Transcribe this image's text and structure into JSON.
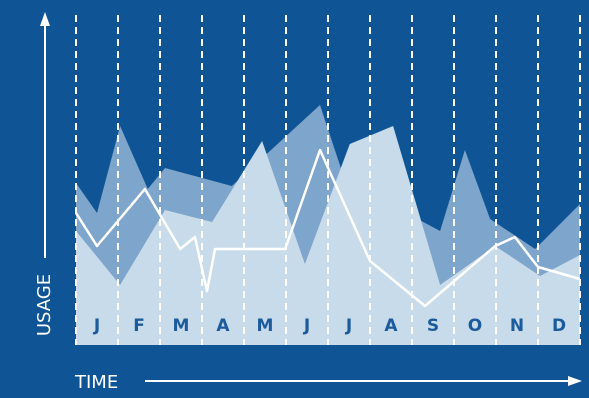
{
  "chart_data": {
    "type": "area",
    "x_label": "TIME",
    "y_label": "USAGE",
    "categories": [
      "J",
      "F",
      "M",
      "A",
      "M",
      "J",
      "J",
      "A",
      "S",
      "O",
      "N",
      "D"
    ],
    "xlim": [
      0,
      12
    ],
    "ylim": [
      0,
      100
    ],
    "xticks": [
      0,
      1,
      2,
      3,
      4,
      5,
      6,
      7,
      8,
      9,
      10,
      11,
      12
    ],
    "grid": true,
    "background": "#0f5596",
    "label_color": "#1c5b9b",
    "grid_color": "#ffffff",
    "series": [
      {
        "type": "area",
        "color": "#7ea5cb",
        "x": [
          0,
          0.5,
          1.05,
          1.71,
          2.12,
          3.71,
          5.81,
          6.4,
          8.67,
          9.26,
          9.86,
          10.93,
          12
        ],
        "values": [
          54,
          44,
          73,
          52,
          59,
          53,
          80,
          55,
          38,
          65,
          42,
          32,
          47
        ]
      },
      {
        "type": "area",
        "color": "#c8dbea",
        "x": [
          0,
          1.05,
          2.12,
          3.24,
          4.43,
          5.45,
          6.52,
          7.55,
          8.67,
          9.98,
          11.05,
          12
        ],
        "values": [
          38,
          20,
          45,
          41,
          68,
          27,
          67,
          73,
          20,
          33,
          23,
          30
        ]
      },
      {
        "type": "line",
        "color": "#ffffff",
        "x": [
          0,
          0.5,
          1.64,
          2.48,
          2.83,
          3.12,
          3.31,
          4.98,
          5.81,
          7,
          8.31,
          9.98,
          10.45,
          11,
          12
        ],
        "values": [
          44,
          33,
          52,
          32,
          36,
          18,
          32,
          32,
          65,
          28,
          13,
          33,
          36,
          26,
          22
        ]
      }
    ]
  }
}
